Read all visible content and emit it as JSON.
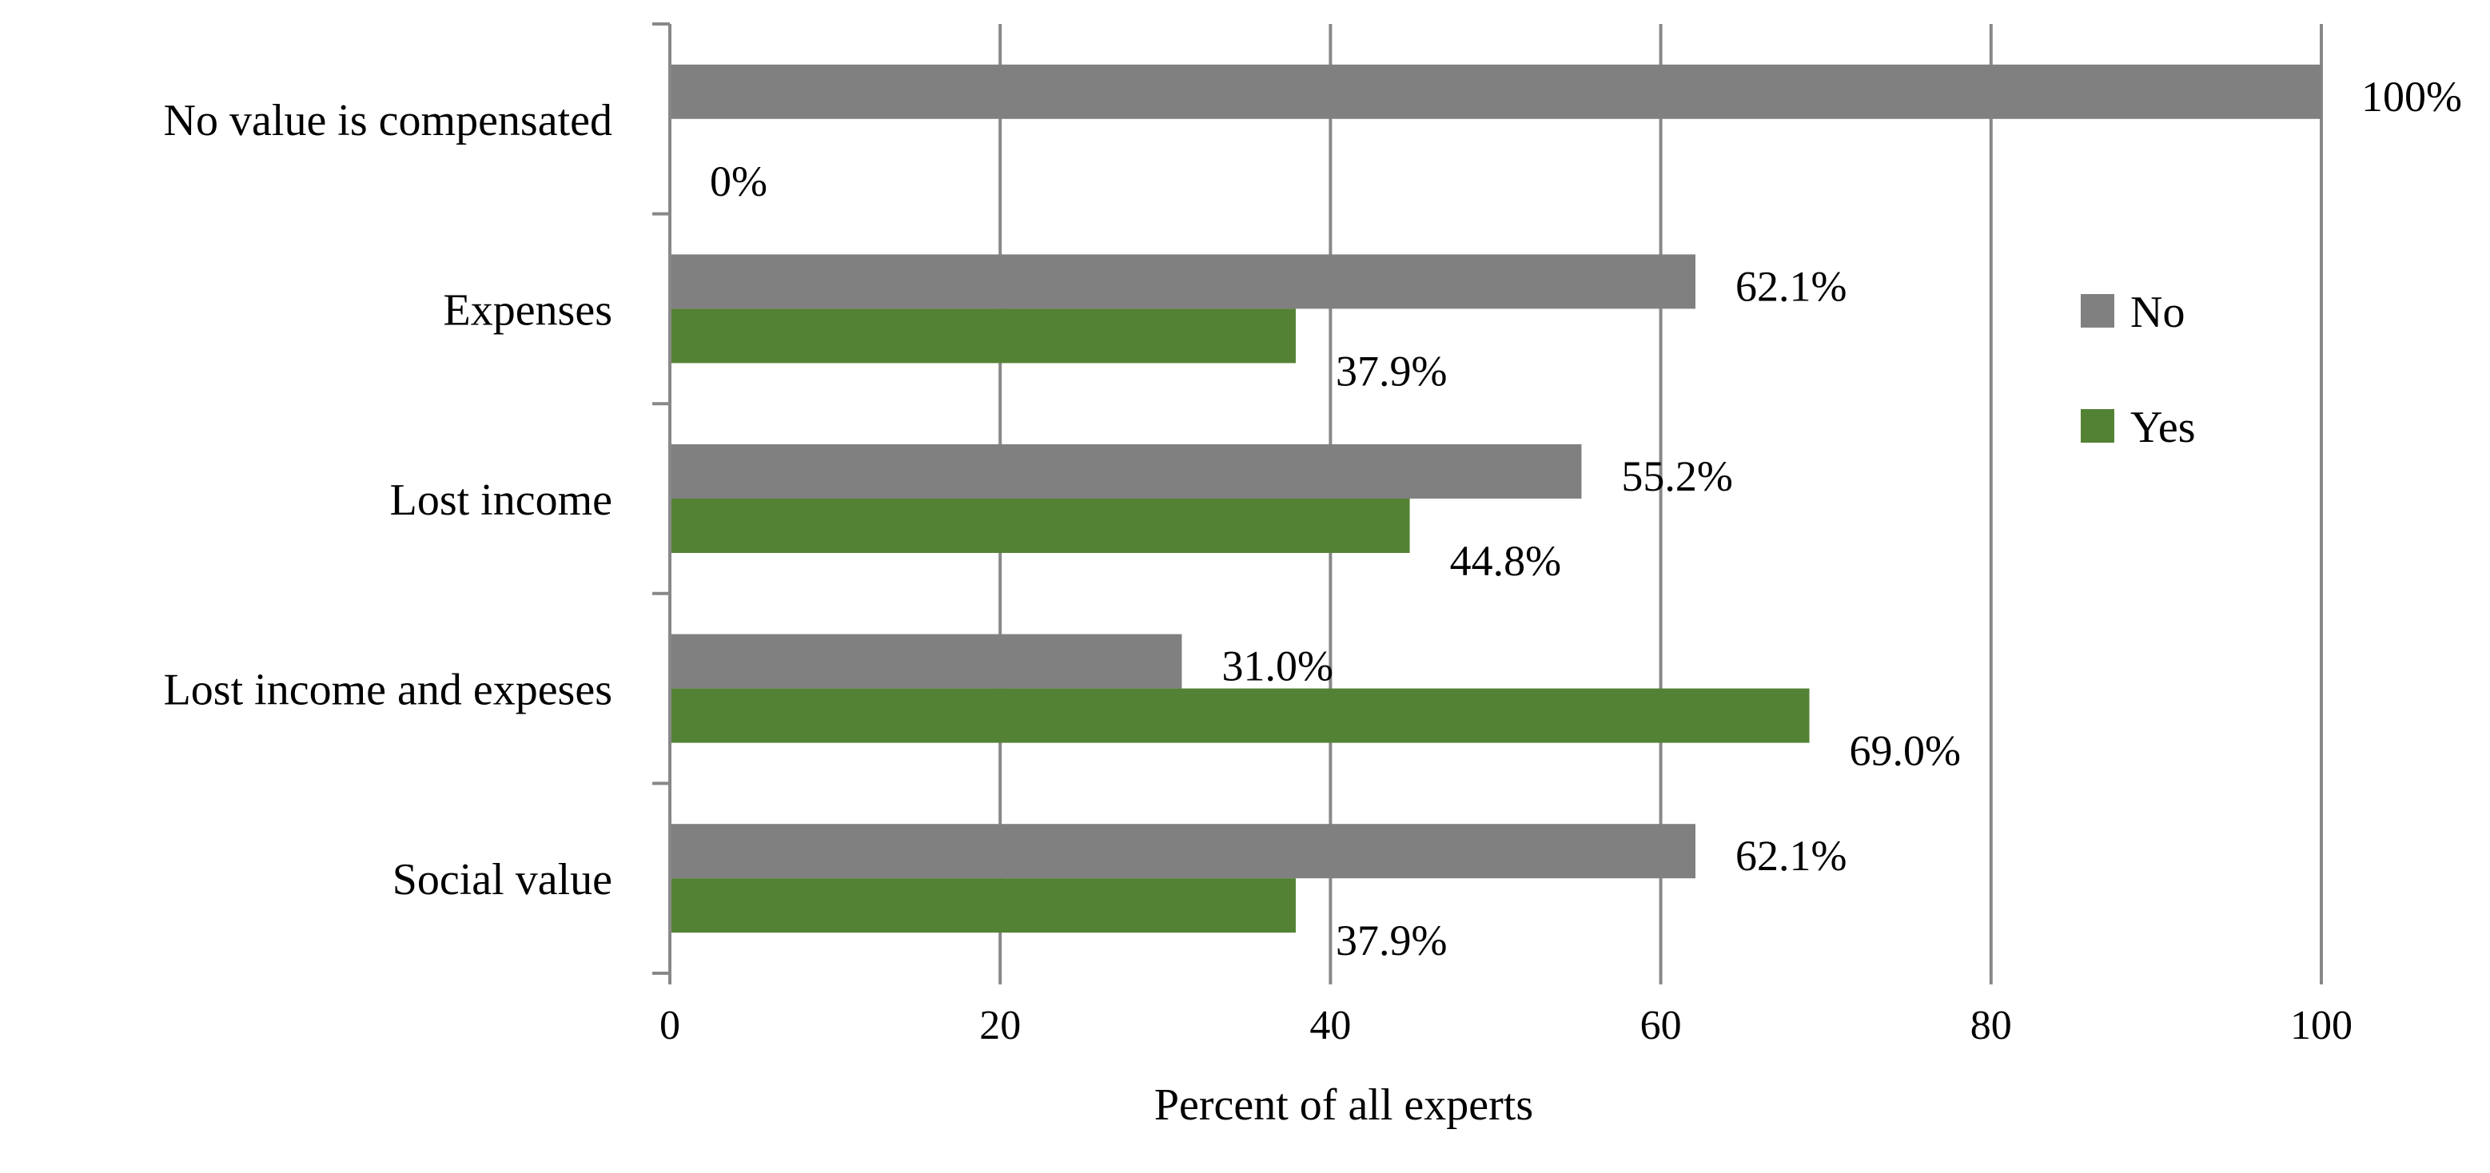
{
  "chart_data": {
    "type": "bar",
    "orientation": "horizontal",
    "title": "",
    "xlabel": "Percent of all experts",
    "ylabel": "",
    "xlim": [
      0,
      100
    ],
    "x_ticks": [
      "0",
      "20",
      "40",
      "60",
      "80",
      "100"
    ],
    "grid": true,
    "legend_position": "right",
    "categories": [
      "No value is compensated",
      "Expenses",
      "Lost income",
      "Lost income and expeses",
      "Social value"
    ],
    "series": [
      {
        "name": "No",
        "color": "#808080",
        "values": [
          100,
          62.1,
          55.2,
          31.0,
          62.1
        ],
        "labels": [
          "100%",
          "62.1%",
          "55.2%",
          "31.0%",
          "62.1%"
        ]
      },
      {
        "name": "Yes",
        "color": "#548235",
        "values": [
          0,
          37.9,
          44.8,
          69.0,
          37.9
        ],
        "labels": [
          "0%",
          "37.9%",
          "44.8%",
          "69.0%",
          "37.9%"
        ]
      }
    ]
  }
}
